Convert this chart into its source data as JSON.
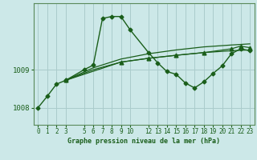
{
  "xlabel": "Graphe pression niveau de la mer (hPa)",
  "bg_color": "#cce8e8",
  "line_color": "#1a5e1a",
  "grid_color": "#aacccc",
  "ylim": [
    1007.55,
    1010.75
  ],
  "xlim": [
    -0.5,
    23.5
  ],
  "yticks": [
    1008,
    1009
  ],
  "xticks": [
    0,
    1,
    2,
    3,
    5,
    6,
    7,
    8,
    9,
    10,
    12,
    13,
    14,
    15,
    16,
    17,
    18,
    19,
    20,
    21,
    22,
    23
  ],
  "xtick_labels": [
    "0",
    "1",
    "2",
    "3",
    "5",
    "6",
    "7",
    "8",
    "9",
    "10",
    "12",
    "13",
    "14",
    "15",
    "16",
    "17",
    "18",
    "19",
    "20",
    "21",
    "22",
    "23"
  ],
  "series": [
    {
      "x": [
        0,
        1,
        2,
        3,
        5,
        6,
        7,
        8,
        9,
        10,
        12,
        13,
        14,
        15,
        16,
        17,
        18,
        19,
        20,
        21,
        22,
        23
      ],
      "y": [
        1008.0,
        1008.3,
        1008.62,
        1008.72,
        1009.0,
        1009.12,
        1010.35,
        1010.4,
        1010.4,
        1010.05,
        1009.45,
        1009.18,
        1008.95,
        1008.88,
        1008.65,
        1008.52,
        1008.68,
        1008.9,
        1009.1,
        1009.42,
        1009.55,
        1009.5
      ],
      "marker": "D",
      "ms": 2.5,
      "lw": 1.0
    },
    {
      "x": [
        3,
        6,
        9,
        12,
        15,
        18,
        21,
        23
      ],
      "y": [
        1008.72,
        1009.0,
        1009.2,
        1009.3,
        1009.38,
        1009.45,
        1009.5,
        1009.52
      ],
      "marker": null,
      "ms": 0,
      "lw": 0.9
    },
    {
      "x": [
        3,
        6,
        9,
        12,
        15,
        18,
        21,
        23
      ],
      "y": [
        1008.72,
        1009.05,
        1009.28,
        1009.42,
        1009.52,
        1009.6,
        1009.65,
        1009.68
      ],
      "marker": null,
      "ms": 0,
      "lw": 0.9
    },
    {
      "x": [
        3,
        9,
        12,
        15,
        18,
        21,
        22,
        23
      ],
      "y": [
        1008.72,
        1009.2,
        1009.3,
        1009.38,
        1009.45,
        1009.55,
        1009.62,
        1009.58
      ],
      "marker": "^",
      "ms": 3.5,
      "lw": 0.9
    }
  ]
}
